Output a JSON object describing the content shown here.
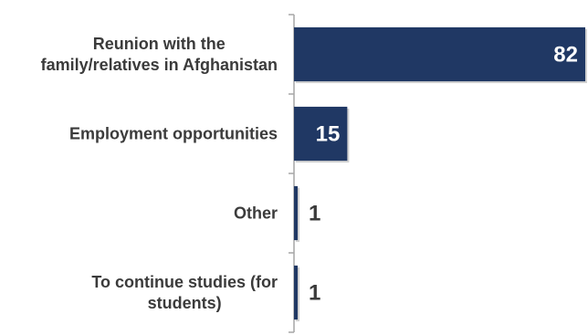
{
  "chart_data": {
    "type": "bar",
    "orientation": "horizontal",
    "categories": [
      [
        "Reunion with the",
        "family/relatives in Afghanistan"
      ],
      [
        "Employment opportunities"
      ],
      [
        "Other"
      ],
      [
        "To continue studies (for",
        "students)"
      ]
    ],
    "values": [
      82,
      15,
      1,
      1
    ],
    "title": "",
    "xlabel": "",
    "ylabel": "",
    "xlim": [
      0,
      82
    ],
    "grid": false,
    "legend": "none",
    "data_labels": true,
    "colors": {
      "bar": "#203864",
      "axis": "#a6a6a6",
      "label_inside": "#ffffff",
      "label_outside": "#3b3b3b",
      "category_text": "#3b3b3b"
    }
  }
}
